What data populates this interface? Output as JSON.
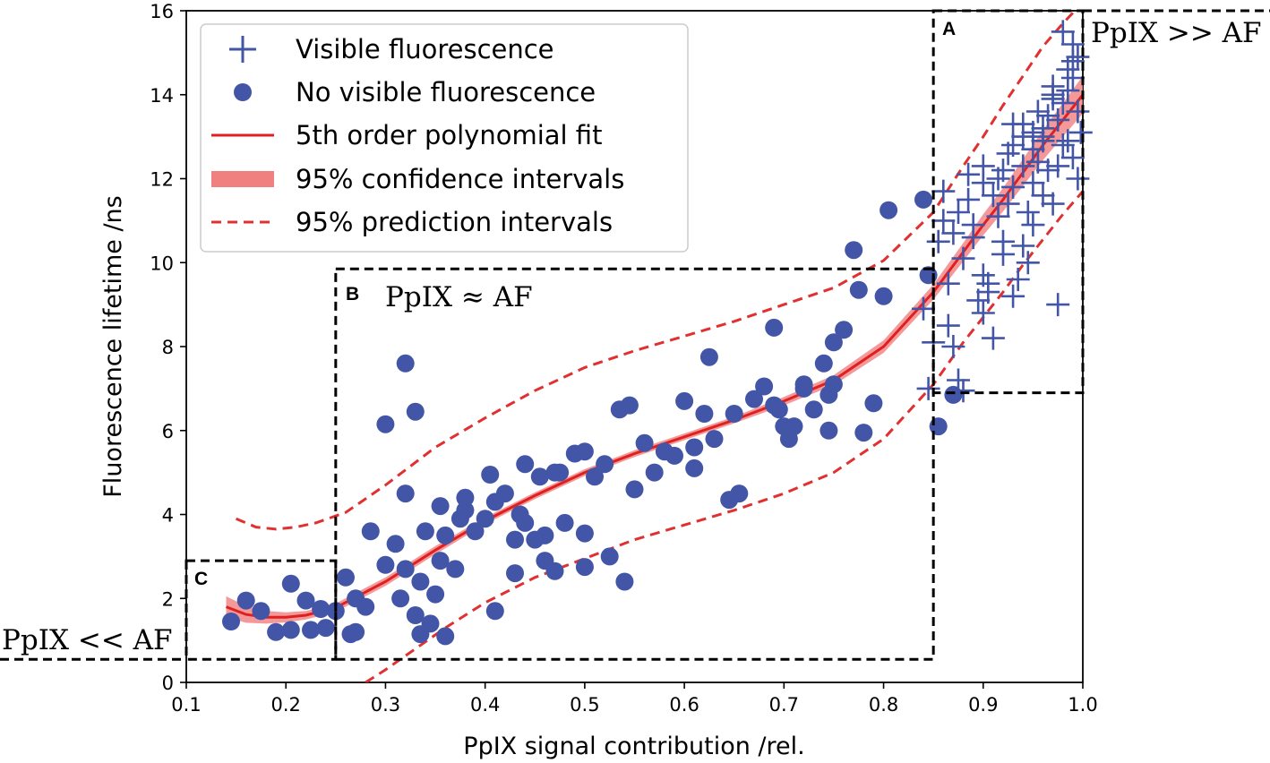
{
  "chart_data": {
    "type": "scatter",
    "xlabel": "PpIX signal contribution /rel.",
    "ylabel": "Fluorescence lifetime /ns",
    "xlim": [
      0.1,
      1.0
    ],
    "ylim": [
      0,
      16
    ],
    "xticks": [
      "0.1",
      "0.2",
      "0.3",
      "0.4",
      "0.5",
      "0.6",
      "0.7",
      "0.8",
      "0.9",
      "1.0"
    ],
    "yticks": [
      "0",
      "2",
      "4",
      "6",
      "8",
      "10",
      "12",
      "14",
      "16"
    ],
    "grid": false,
    "legend_position": "top-left",
    "legend": {
      "visible": "Visible fluorescence",
      "novisible": "No visible fluorescence",
      "fit": "5th order polynomial fit",
      "ci": "95% confidence intervals",
      "pi": "95% prediction intervals"
    },
    "colors": {
      "points": "#4355a7",
      "fit": "#e02020",
      "ci_band": "#f08080",
      "pi_line": "#e03030",
      "region_box": "#000000"
    },
    "regions": [
      {
        "letter": "A",
        "label": "PpIX >> AF",
        "x": [
          0.85,
          1.0
        ],
        "y": [
          6.9,
          16.0
        ]
      },
      {
        "letter": "B",
        "label": "PpIX ≈ AF",
        "x": [
          0.25,
          0.85
        ],
        "y": [
          0.55,
          9.85
        ]
      },
      {
        "letter": "C",
        "label": "PpIX << AF",
        "x": [
          0.1,
          0.25
        ],
        "y": [
          0.55,
          2.9
        ]
      }
    ],
    "fit_curve": {
      "x": [
        0.14,
        0.16,
        0.18,
        0.2,
        0.22,
        0.25,
        0.3,
        0.35,
        0.4,
        0.45,
        0.5,
        0.55,
        0.6,
        0.65,
        0.7,
        0.75,
        0.8,
        0.85,
        0.88,
        0.9,
        0.92,
        0.94,
        0.96,
        0.98,
        1.0
      ],
      "y": [
        1.8,
        1.62,
        1.55,
        1.55,
        1.6,
        1.78,
        2.4,
        3.15,
        3.85,
        4.45,
        5.0,
        5.45,
        5.85,
        6.25,
        6.7,
        7.2,
        8.0,
        9.3,
        10.25,
        10.9,
        11.5,
        12.15,
        12.8,
        13.4,
        14.0
      ]
    },
    "ci_halfwidth": [
      0.25,
      0.2,
      0.15,
      0.12,
      0.1,
      0.1,
      0.1,
      0.1,
      0.08,
      0.08,
      0.08,
      0.08,
      0.08,
      0.08,
      0.1,
      0.12,
      0.15,
      0.18,
      0.22,
      0.25,
      0.28,
      0.32,
      0.36,
      0.4,
      0.45
    ],
    "pi_upper": {
      "x": [
        0.15,
        0.17,
        0.19,
        0.21,
        0.23,
        0.26,
        0.3,
        0.35,
        0.4,
        0.45,
        0.5,
        0.55,
        0.6,
        0.65,
        0.7,
        0.75,
        0.8,
        0.85,
        0.88,
        0.9,
        0.92,
        0.94,
        0.96,
        0.98,
        1.0
      ],
      "y": [
        3.9,
        3.7,
        3.65,
        3.7,
        3.8,
        4.05,
        4.7,
        5.6,
        6.3,
        6.95,
        7.5,
        7.9,
        8.25,
        8.6,
        9.0,
        9.4,
        10.05,
        11.2,
        12.3,
        13.0,
        13.75,
        14.45,
        15.15,
        15.7,
        16.2
      ]
    },
    "pi_lower": {
      "x": [
        0.28,
        0.3,
        0.33,
        0.36,
        0.4,
        0.45,
        0.5,
        0.55,
        0.6,
        0.65,
        0.7,
        0.75,
        0.8,
        0.85,
        0.88,
        0.9,
        0.92,
        0.94,
        0.96,
        0.98,
        1.0
      ],
      "y": [
        0.0,
        0.3,
        0.8,
        1.3,
        1.9,
        2.5,
        2.95,
        3.4,
        3.75,
        4.1,
        4.5,
        5.0,
        5.8,
        7.1,
        8.1,
        8.7,
        9.3,
        9.95,
        10.55,
        11.15,
        11.7
      ]
    },
    "series_novisible": {
      "name": "No visible fluorescence",
      "x": [
        0.145,
        0.16,
        0.175,
        0.19,
        0.205,
        0.205,
        0.22,
        0.225,
        0.235,
        0.24,
        0.25,
        0.26,
        0.265,
        0.27,
        0.28,
        0.285,
        0.3,
        0.31,
        0.315,
        0.32,
        0.32,
        0.33,
        0.335,
        0.34,
        0.345,
        0.35,
        0.355,
        0.36,
        0.37,
        0.375,
        0.38,
        0.39,
        0.4,
        0.405,
        0.41,
        0.42,
        0.43,
        0.435,
        0.44,
        0.45,
        0.455,
        0.46,
        0.47,
        0.475,
        0.48,
        0.49,
        0.5,
        0.51,
        0.52,
        0.525,
        0.535,
        0.545,
        0.55,
        0.56,
        0.57,
        0.58,
        0.59,
        0.6,
        0.61,
        0.62,
        0.625,
        0.63,
        0.645,
        0.655,
        0.67,
        0.68,
        0.69,
        0.695,
        0.7,
        0.705,
        0.71,
        0.72,
        0.73,
        0.74,
        0.745,
        0.75,
        0.76,
        0.77,
        0.775,
        0.78,
        0.79,
        0.8,
        0.805,
        0.84,
        0.845,
        0.855,
        0.87,
        0.32,
        0.38,
        0.43,
        0.47,
        0.3,
        0.27,
        0.335,
        0.355,
        0.44,
        0.5,
        0.54,
        0.33,
        0.36,
        0.41,
        0.46,
        0.5,
        0.61,
        0.65,
        0.69,
        0.72,
        0.745,
        0.75
      ],
      "y": [
        1.45,
        1.95,
        1.7,
        1.2,
        1.25,
        2.35,
        1.95,
        1.25,
        1.75,
        1.3,
        1.7,
        2.5,
        1.15,
        2.0,
        1.8,
        3.6,
        2.8,
        3.3,
        2.0,
        4.5,
        2.7,
        1.6,
        2.4,
        3.6,
        1.4,
        2.1,
        4.2,
        3.5,
        2.7,
        3.9,
        4.1,
        3.6,
        3.9,
        4.95,
        4.3,
        4.5,
        2.6,
        4.0,
        5.2,
        3.4,
        4.9,
        3.5,
        2.65,
        5.0,
        3.8,
        5.45,
        5.5,
        4.9,
        5.2,
        3.0,
        6.5,
        6.6,
        4.6,
        5.7,
        5.0,
        5.5,
        5.4,
        6.7,
        5.1,
        6.4,
        7.75,
        5.8,
        4.35,
        4.5,
        6.75,
        7.05,
        8.45,
        6.5,
        6.1,
        5.8,
        6.1,
        7.1,
        6.5,
        7.6,
        6.0,
        8.1,
        8.4,
        10.3,
        9.35,
        5.95,
        6.65,
        9.2,
        11.25,
        11.5,
        9.7,
        6.1,
        6.85,
        7.6,
        4.4,
        3.4,
        5.0,
        6.15,
        1.2,
        1.15,
        2.9,
        3.8,
        2.75,
        2.4,
        6.45,
        1.1,
        1.7,
        2.9,
        3.55,
        5.6,
        6.4,
        6.6,
        7.0,
        6.85,
        7.1
      ]
    },
    "series_visible": {
      "name": "Visible fluorescence",
      "x": [
        0.84,
        0.845,
        0.85,
        0.855,
        0.86,
        0.865,
        0.87,
        0.875,
        0.88,
        0.885,
        0.89,
        0.895,
        0.9,
        0.905,
        0.91,
        0.915,
        0.92,
        0.925,
        0.93,
        0.935,
        0.94,
        0.945,
        0.95,
        0.955,
        0.96,
        0.965,
        0.97,
        0.975,
        0.98,
        0.985,
        0.99,
        0.995,
        0.998,
        0.86,
        0.875,
        0.89,
        0.9,
        0.91,
        0.92,
        0.93,
        0.94,
        0.95,
        0.96,
        0.97,
        0.98,
        0.99,
        0.88,
        0.9,
        0.915,
        0.93,
        0.945,
        0.96,
        0.975,
        0.985,
        0.995,
        0.865,
        0.885,
        0.905,
        0.925,
        0.94,
        0.955,
        0.97,
        0.99,
        0.87,
        0.9,
        0.92,
        0.94,
        0.95,
        0.965,
        0.98,
        0.995,
        0.99,
        0.985,
        0.975,
        0.97,
        0.96,
        0.95,
        0.93
      ],
      "y": [
        8.9,
        7.0,
        8.1,
        10.5,
        11.7,
        9.5,
        10.7,
        11.2,
        10.1,
        11.5,
        10.9,
        9.1,
        12.3,
        9.3,
        8.2,
        12.0,
        10.2,
        12.6,
        11.8,
        9.6,
        13.3,
        11.2,
        10.9,
        13.6,
        11.6,
        12.2,
        14.2,
        13.4,
        15.5,
        12.9,
        14.4,
        14.9,
        13.1,
        11.0,
        7.2,
        10.6,
        8.8,
        11.6,
        12.2,
        9.2,
        10.4,
        12.7,
        13.0,
        11.4,
        13.8,
        12.5,
        6.95,
        9.7,
        11.1,
        12.8,
        10.0,
        13.2,
        9.0,
        14.6,
        12.0,
        8.5,
        12.1,
        9.5,
        11.4,
        13.0,
        12.4,
        14.0,
        15.2,
        8.0,
        11.9,
        10.5,
        12.3,
        11.9,
        13.5,
        12.8,
        13.6,
        14.8,
        14.1,
        12.3,
        13.9,
        12.9,
        13.1,
        13.3
      ]
    }
  }
}
